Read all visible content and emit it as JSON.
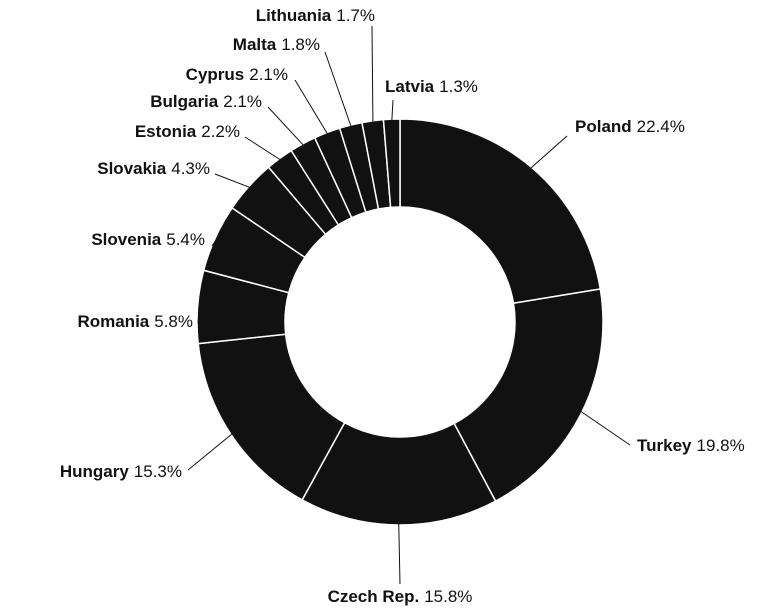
{
  "chart_data": {
    "type": "donut",
    "categories": [
      "Poland",
      "Turkey",
      "Czech Rep.",
      "Hungary",
      "Romania",
      "Slovenia",
      "Slovakia",
      "Estonia",
      "Bulgaria",
      "Cyprus",
      "Malta",
      "Lithuania",
      "Latvia"
    ],
    "values": [
      22.4,
      19.8,
      15.8,
      15.3,
      5.8,
      5.4,
      4.3,
      2.2,
      2.1,
      2.1,
      1.8,
      1.7,
      1.3
    ],
    "value_labels": [
      "22.4%",
      "19.8%",
      "15.8%",
      "15.3%",
      "5.8%",
      "5.4%",
      "4.3%",
      "2.2%",
      "2.1%",
      "2.1%",
      "1.8%",
      "1.7%",
      "1.3%"
    ],
    "color": "#111111"
  }
}
